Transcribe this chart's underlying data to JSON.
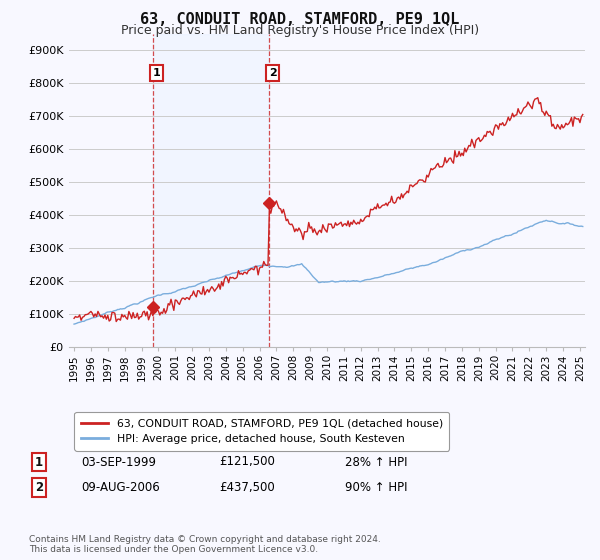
{
  "title": "63, CONDUIT ROAD, STAMFORD, PE9 1QL",
  "subtitle": "Price paid vs. HM Land Registry's House Price Index (HPI)",
  "legend_line1": "63, CONDUIT ROAD, STAMFORD, PE9 1QL (detached house)",
  "legend_line2": "HPI: Average price, detached house, South Kesteven",
  "footnote": "Contains HM Land Registry data © Crown copyright and database right 2024.\nThis data is licensed under the Open Government Licence v3.0.",
  "sale1_label": "1",
  "sale1_date": "03-SEP-1999",
  "sale1_price": "£121,500",
  "sale1_hpi": "28% ↑ HPI",
  "sale2_label": "2",
  "sale2_date": "09-AUG-2006",
  "sale2_price": "£437,500",
  "sale2_hpi": "90% ↑ HPI",
  "property_color": "#cc2222",
  "hpi_color": "#7aaddd",
  "shading_color": "#ddeeff",
  "background_color": "#f8f8ff",
  "grid_color": "#cccccc",
  "sale1_year": 1999.67,
  "sale1_value": 121500,
  "sale2_year": 2006.58,
  "sale2_value": 437500,
  "vline_color": "#cc2222",
  "xlim": [
    1994.7,
    2025.3
  ],
  "ylim": [
    0,
    950000
  ],
  "yticks": [
    0,
    100000,
    200000,
    300000,
    400000,
    500000,
    600000,
    700000,
    800000,
    900000
  ],
  "ytick_labels": [
    "£0",
    "£100K",
    "£200K",
    "£300K",
    "£400K",
    "£500K",
    "£600K",
    "£700K",
    "£800K",
    "£900K"
  ]
}
